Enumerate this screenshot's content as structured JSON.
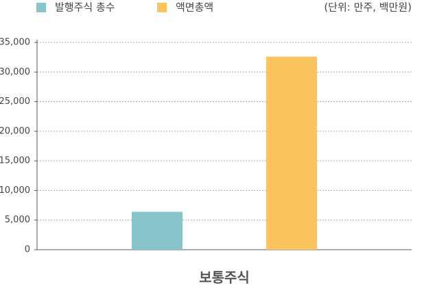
{
  "chart_data": {
    "type": "bar",
    "annotation": "(단위: 만주, 백만원)",
    "categories": [
      "보통주식"
    ],
    "series": [
      {
        "name": "발행주식 총수",
        "color": "#88c6cc",
        "values": [
          6400
        ]
      },
      {
        "name": "액면총액",
        "color": "#fcc45f",
        "values": [
          32600
        ]
      }
    ],
    "ylim": [
      0,
      35000
    ],
    "yticks": [
      0,
      {
        "value": 5000,
        "label": "5,000"
      },
      {
        "value": 10000,
        "label": "10,000"
      },
      {
        "value": 15000,
        "label": "15,000"
      },
      {
        "value": 20000,
        "label": "20,000"
      },
      {
        "value": 25000,
        "label": "25,000"
      },
      {
        "value": 30000,
        "label": "30,000"
      },
      {
        "value": 35000,
        "label": "35,000"
      }
    ],
    "grid": true
  }
}
